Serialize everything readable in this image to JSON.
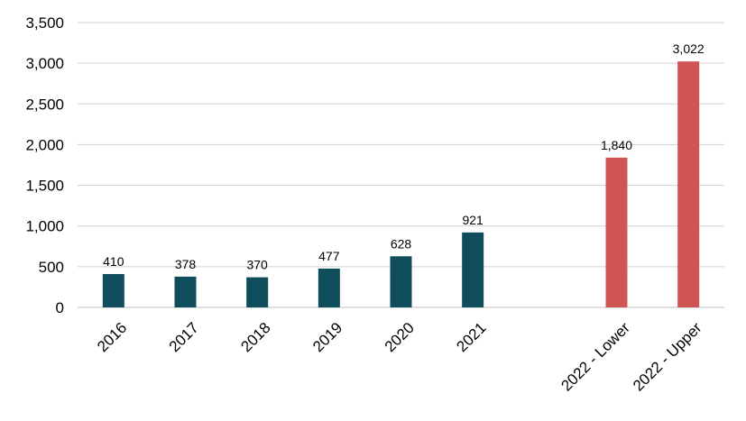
{
  "chart_data": {
    "type": "bar",
    "title": "",
    "xlabel": "",
    "ylabel": "",
    "ylim": [
      0,
      3500
    ],
    "y_ticks": [
      "0",
      "500",
      "1,000",
      "1,500",
      "2,000",
      "2,500",
      "3,000",
      "3,500"
    ],
    "y_tick_values": [
      0,
      500,
      1000,
      1500,
      2000,
      2500,
      3000,
      3500
    ],
    "grid": true,
    "legend": "none",
    "categories": [
      "2016",
      "2017",
      "2018",
      "2019",
      "2020",
      "2021",
      "",
      "2022 - Lower",
      "2022 - Upper"
    ],
    "values": [
      410,
      378,
      370,
      477,
      628,
      921,
      null,
      1840,
      3022
    ],
    "data_labels": [
      "410",
      "378",
      "370",
      "477",
      "628",
      "921",
      "",
      "1,840",
      "3,022"
    ],
    "bar_colors": [
      "#0f4c5c",
      "#0f4c5c",
      "#0f4c5c",
      "#0f4c5c",
      "#0f4c5c",
      "#0f4c5c",
      "",
      "#d05454",
      "#d05454"
    ]
  }
}
